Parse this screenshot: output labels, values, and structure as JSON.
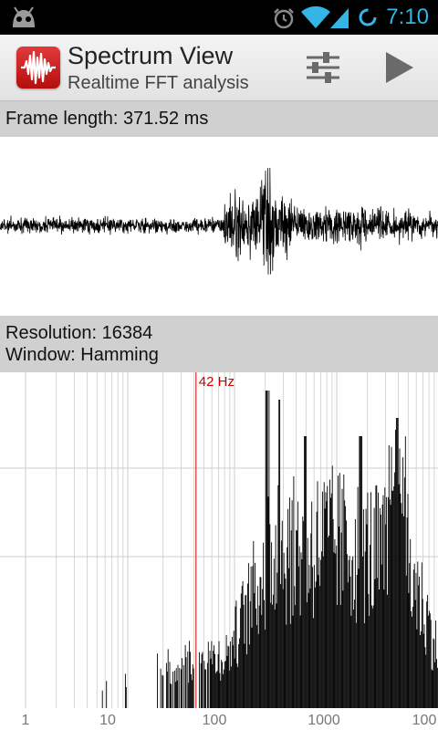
{
  "status_bar": {
    "time": "7:10",
    "icons": [
      "cyanogen-android-icon",
      "alarm-icon",
      "wifi-icon",
      "signal-icon",
      "sync-icon"
    ]
  },
  "action_bar": {
    "title": "Spectrum View",
    "subtitle": "Realtime FFT analysis",
    "app_icon": "waveform-icon",
    "buttons": [
      "settings-sliders-icon",
      "play-icon"
    ]
  },
  "waveform_panel": {
    "frame_length_label": "Frame length: 371.52 ms"
  },
  "spectrum_panel": {
    "resolution_label": "Resolution: 16384",
    "window_label": "Window: Hamming",
    "marker_label": "42 Hz",
    "marker_frequency_hz": 42,
    "x_tick_labels": [
      "1",
      "10",
      "100",
      "1000",
      "100"
    ],
    "x_scale": "log",
    "colors": {
      "marker": "#cc0000",
      "spectrum": "#000000",
      "grid": "#cccccc"
    }
  }
}
